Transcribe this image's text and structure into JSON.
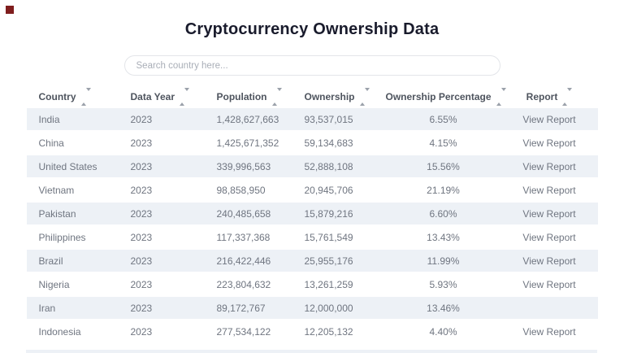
{
  "header": {
    "title": "Cryptocurrency Ownership Data"
  },
  "search": {
    "placeholder": "Search country here...",
    "value": ""
  },
  "table": {
    "columns": [
      {
        "label": "Country"
      },
      {
        "label": "Data Year"
      },
      {
        "label": "Population"
      },
      {
        "label": "Ownership"
      },
      {
        "label": "Ownership Percentage"
      },
      {
        "label": "Report"
      }
    ],
    "rows": [
      {
        "country": "India",
        "year": "2023",
        "population": "1,428,627,663",
        "ownership": "93,537,015",
        "percentage": "6.55%",
        "report": "View Report"
      },
      {
        "country": "China",
        "year": "2023",
        "population": "1,425,671,352",
        "ownership": "59,134,683",
        "percentage": "4.15%",
        "report": "View Report"
      },
      {
        "country": "United States",
        "year": "2023",
        "population": "339,996,563",
        "ownership": "52,888,108",
        "percentage": "15.56%",
        "report": "View Report"
      },
      {
        "country": "Vietnam",
        "year": "2023",
        "population": "98,858,950",
        "ownership": "20,945,706",
        "percentage": "21.19%",
        "report": "View Report"
      },
      {
        "country": "Pakistan",
        "year": "2023",
        "population": "240,485,658",
        "ownership": "15,879,216",
        "percentage": "6.60%",
        "report": "View Report"
      },
      {
        "country": "Philippines",
        "year": "2023",
        "population": "117,337,368",
        "ownership": "15,761,549",
        "percentage": "13.43%",
        "report": "View Report"
      },
      {
        "country": "Brazil",
        "year": "2023",
        "population": "216,422,446",
        "ownership": "25,955,176",
        "percentage": "11.99%",
        "report": "View Report"
      },
      {
        "country": "Nigeria",
        "year": "2023",
        "population": "223,804,632",
        "ownership": "13,261,259",
        "percentage": "5.93%",
        "report": "View Report"
      },
      {
        "country": "Iran",
        "year": "2023",
        "population": "89,172,767",
        "ownership": "12,000,000",
        "percentage": "13.46%",
        "report": ""
      },
      {
        "country": "Indonesia",
        "year": "2023",
        "population": "277,534,122",
        "ownership": "12,205,132",
        "percentage": "4.40%",
        "report": "View Report"
      }
    ],
    "striped_row_indices": [
      0,
      2,
      4,
      6,
      8
    ]
  },
  "colors": {
    "row_stripe": "#edf1f6",
    "header_text": "#4e545e",
    "cell_text": "#6f7580",
    "title_text": "#191b2c",
    "corner_marker": "#7f1d1d",
    "search_border": "#e3e5e9"
  }
}
